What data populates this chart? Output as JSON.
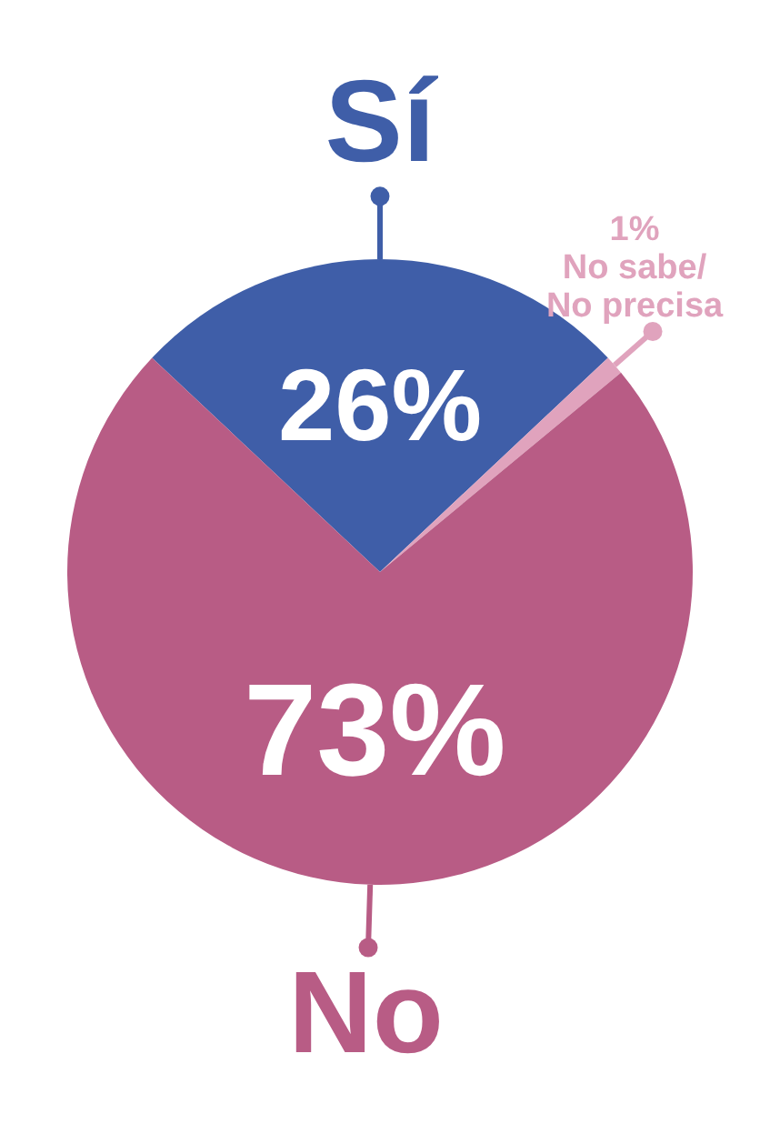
{
  "chart_data": {
    "type": "pie",
    "categories": [
      "Sí",
      "No sabe/\nNo precisa",
      "No"
    ],
    "values": [
      26,
      1,
      73
    ],
    "colors": [
      "#3f5ea8",
      "#e0a3bd",
      "#b85c85"
    ],
    "value_labels": [
      "26%",
      "1%",
      "73%"
    ]
  }
}
